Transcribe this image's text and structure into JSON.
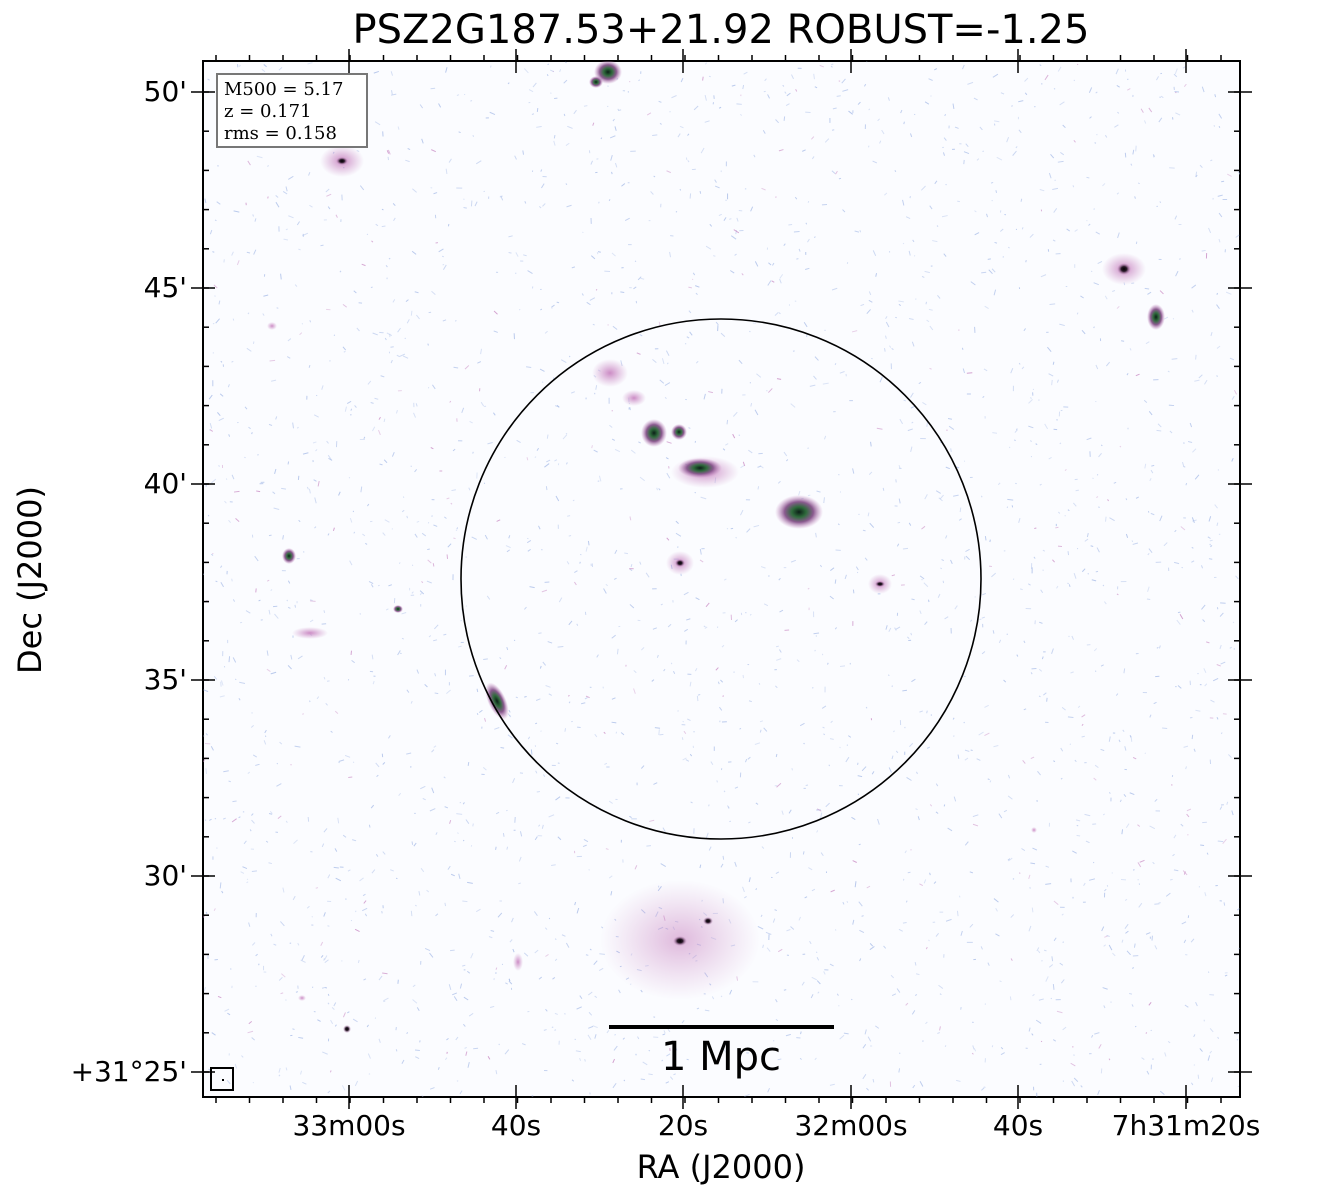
{
  "title": "PSZ2G187.53+21.92 ROBUST=-1.25",
  "axes": {
    "xlabel": "RA (J2000)",
    "ylabel": "Dec (J2000)",
    "xticks": [
      "33m00s",
      "40s",
      "20s",
      "32m00s",
      "40s",
      "7h31m20s"
    ],
    "yticks": [
      "50'",
      "45'",
      "40'",
      "35'",
      "30'",
      "+31°25'"
    ]
  },
  "info": {
    "m500": "M500 = 5.17",
    "z": "z = 0.171",
    "rms": "rms = 0.158"
  },
  "scalebar": {
    "label": "1 Mpc"
  },
  "colors": {
    "noise": "#a9bde8",
    "faint": "#c98bc4",
    "mid": "#8a5a8f",
    "core": "#2f6b3c",
    "peak": "#0b1f17"
  }
}
